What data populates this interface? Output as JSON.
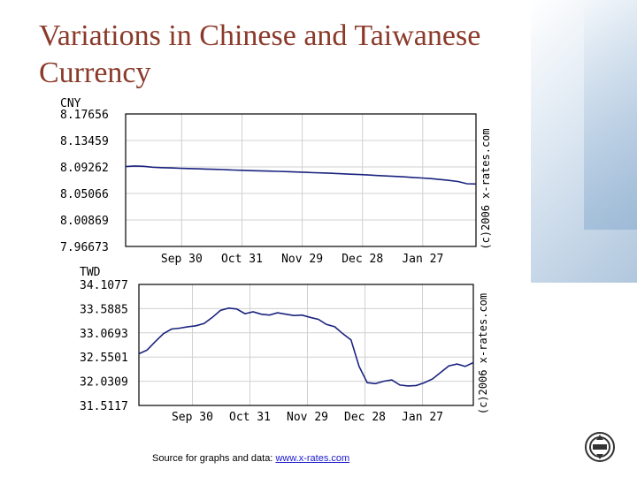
{
  "title": "Variations in Chinese and Taiwanese Currency",
  "source": {
    "prefix": "Source for graphs and data: ",
    "link_text": "www.x-rates.com"
  },
  "colors": {
    "title": "#8b3a2a",
    "line": "#1a237e",
    "grid": "#d0d0d0"
  },
  "chart_data": [
    {
      "type": "line",
      "ylabel": "CNY",
      "watermark": "(c)2006 x-rates.com",
      "y_ticks": [
        "8.17656",
        "8.13459",
        "8.09262",
        "8.05066",
        "8.00869",
        "7.96673"
      ],
      "ylim": [
        7.96673,
        8.17656
      ],
      "x_ticks": [
        "Sep 30",
        "Oct 31",
        "Nov 29",
        "Dec 28",
        "Jan 27"
      ],
      "series": [
        {
          "values": [
            8.0932,
            8.0941,
            8.0936,
            8.0922,
            8.0915,
            8.0911,
            8.0905,
            8.0901,
            8.0897,
            8.0893,
            8.0888,
            8.0884,
            8.0878,
            8.0873,
            8.0868,
            8.0865,
            8.0861,
            8.0857,
            8.0852,
            8.0847,
            8.0841,
            8.0836,
            8.0831,
            8.0826,
            8.0818,
            8.0812,
            8.0806,
            8.0799,
            8.0791,
            8.0784,
            8.0776,
            8.0769,
            8.076,
            8.0751,
            8.0742,
            8.0728,
            8.0714,
            8.0696,
            8.066,
            8.0656
          ]
        }
      ]
    },
    {
      "type": "line",
      "ylabel": "TWD",
      "watermark": "(c)2006 x-rates.com",
      "y_ticks": [
        "34.1077",
        "33.5885",
        "33.0693",
        "32.5501",
        "32.0309",
        "31.5117"
      ],
      "ylim": [
        31.5117,
        34.1077
      ],
      "x_ticks": [
        "Sep 30",
        "Oct 31",
        "Nov 29",
        "Dec 28",
        "Jan 27"
      ],
      "series": [
        {
          "values": [
            32.62,
            32.7,
            32.88,
            33.05,
            33.15,
            33.17,
            33.2,
            33.22,
            33.27,
            33.4,
            33.55,
            33.6,
            33.58,
            33.48,
            33.52,
            33.47,
            33.45,
            33.5,
            33.47,
            33.44,
            33.45,
            33.4,
            33.36,
            33.25,
            33.2,
            33.05,
            32.92,
            32.35,
            32.0,
            31.98,
            32.03,
            32.06,
            31.95,
            31.93,
            31.94,
            32.0,
            32.08,
            32.22,
            32.36,
            32.4,
            32.35,
            32.43
          ]
        }
      ]
    }
  ]
}
